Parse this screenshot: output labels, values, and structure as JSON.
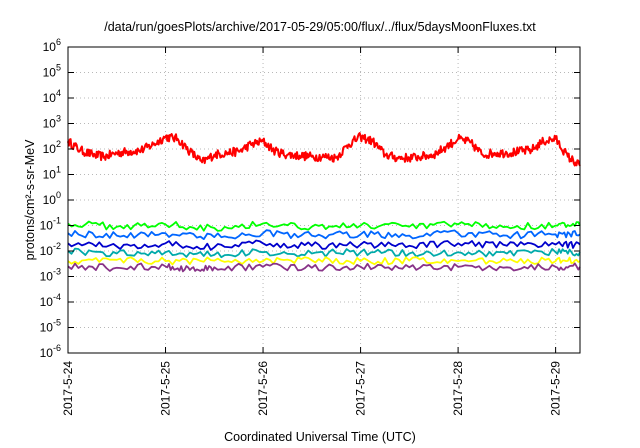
{
  "chart_data": {
    "type": "line",
    "title": "/data/run/goesPlots/archive/2017-05-29/05:00/flux/../flux/5daysMoonFluxes.txt",
    "xlabel": "Coordinated Universal Time (UTC)",
    "ylabel": "protons/cm²-s-sr-MeV",
    "yscale": "log",
    "ylim": [
      1e-06,
      1000000.0
    ],
    "ytick_labels": [
      {
        "exp": -6,
        "base": "10",
        "sup": "-6"
      },
      {
        "exp": -5,
        "base": "10",
        "sup": "-5"
      },
      {
        "exp": -4,
        "base": "10",
        "sup": "-4"
      },
      {
        "exp": -3,
        "base": "10",
        "sup": "-3"
      },
      {
        "exp": -2,
        "base": "10",
        "sup": "-2"
      },
      {
        "exp": -1,
        "base": "10",
        "sup": "-1"
      },
      {
        "exp": 0,
        "base": "10",
        "sup": "0"
      },
      {
        "exp": 1,
        "base": "10",
        "sup": "1"
      },
      {
        "exp": 2,
        "base": "10",
        "sup": "2"
      },
      {
        "exp": 3,
        "base": "10",
        "sup": "3"
      },
      {
        "exp": 4,
        "base": "10",
        "sup": "4"
      },
      {
        "exp": 5,
        "base": "10",
        "sup": "5"
      },
      {
        "exp": 6,
        "base": "10",
        "sup": "6"
      }
    ],
    "xlim": [
      "2017-05-24T00:00",
      "2017-05-29T06:00"
    ],
    "x_ticks": [
      {
        "x": "2017-05-24T00:00",
        "label": "2017-5-24"
      },
      {
        "x": "2017-05-25T00:00",
        "label": "2017-5-25"
      },
      {
        "x": "2017-05-26T00:00",
        "label": "2017-5-26"
      },
      {
        "x": "2017-05-27T00:00",
        "label": "2017-5-27"
      },
      {
        "x": "2017-05-28T00:00",
        "label": "2017-5-28"
      },
      {
        "x": "2017-05-29T00:00",
        "label": "2017-5-29"
      }
    ],
    "grid": true,
    "legend": "none",
    "series": [
      {
        "color": "#ff0000",
        "x": [
          "2017-05-24T00:00",
          "2017-05-24T03:00",
          "2017-05-24T06:00",
          "2017-05-24T09:00",
          "2017-05-24T12:00",
          "2017-05-24T15:00",
          "2017-05-24T18:00",
          "2017-05-24T21:00",
          "2017-05-25T00:00",
          "2017-05-25T03:00",
          "2017-05-25T06:00",
          "2017-05-25T09:00",
          "2017-05-25T12:00",
          "2017-05-25T15:00",
          "2017-05-25T18:00",
          "2017-05-25T21:00",
          "2017-05-26T00:00",
          "2017-05-26T03:00",
          "2017-05-26T06:00",
          "2017-05-26T09:00",
          "2017-05-26T12:00",
          "2017-05-26T15:00",
          "2017-05-26T18:00",
          "2017-05-26T21:00",
          "2017-05-27T00:00",
          "2017-05-27T03:00",
          "2017-05-27T06:00",
          "2017-05-27T09:00",
          "2017-05-27T12:00",
          "2017-05-27T15:00",
          "2017-05-27T18:00",
          "2017-05-27T21:00",
          "2017-05-28T00:00",
          "2017-05-28T03:00",
          "2017-05-28T06:00",
          "2017-05-28T09:00",
          "2017-05-28T12:00",
          "2017-05-28T15:00",
          "2017-05-28T18:00",
          "2017-05-28T21:00",
          "2017-05-29T00:00",
          "2017-05-29T03:00",
          "2017-05-29T06:00"
        ],
        "y": [
          200,
          90,
          60,
          50,
          70,
          80,
          90,
          150,
          300,
          250,
          80,
          30,
          60,
          70,
          80,
          150,
          200,
          80,
          60,
          55,
          50,
          50,
          45,
          150,
          300,
          200,
          60,
          45,
          45,
          50,
          60,
          120,
          250,
          180,
          60,
          70,
          70,
          80,
          90,
          200,
          250,
          50,
          22
        ]
      },
      {
        "color": "#00ff00",
        "x": [
          "2017-05-24T00:00",
          "2017-05-24T12:00",
          "2017-05-25T00:00",
          "2017-05-25T12:00",
          "2017-05-26T00:00",
          "2017-05-26T12:00",
          "2017-05-27T00:00",
          "2017-05-27T12:00",
          "2017-05-28T00:00",
          "2017-05-28T12:00",
          "2017-05-29T00:00",
          "2017-05-29T06:00"
        ],
        "y": [
          0.12,
          0.09,
          0.11,
          0.08,
          0.12,
          0.09,
          0.1,
          0.09,
          0.11,
          0.09,
          0.1,
          0.1
        ]
      },
      {
        "color": "#0066ff",
        "x": [
          "2017-05-24T00:00",
          "2017-05-24T12:00",
          "2017-05-25T00:00",
          "2017-05-25T12:00",
          "2017-05-26T00:00",
          "2017-05-26T12:00",
          "2017-05-27T00:00",
          "2017-05-27T12:00",
          "2017-05-28T00:00",
          "2017-05-28T12:00",
          "2017-05-29T00:00",
          "2017-05-29T06:00"
        ],
        "y": [
          0.05,
          0.04,
          0.05,
          0.035,
          0.05,
          0.04,
          0.045,
          0.04,
          0.05,
          0.04,
          0.045,
          0.045
        ]
      },
      {
        "color": "#0000cc",
        "x": [
          "2017-05-24T00:00",
          "2017-05-24T12:00",
          "2017-05-25T00:00",
          "2017-05-25T12:00",
          "2017-05-26T00:00",
          "2017-05-26T12:00",
          "2017-05-27T00:00",
          "2017-05-27T12:00",
          "2017-05-28T00:00",
          "2017-05-28T12:00",
          "2017-05-29T00:00",
          "2017-05-29T06:00"
        ],
        "y": [
          0.02,
          0.015,
          0.02,
          0.014,
          0.02,
          0.016,
          0.018,
          0.016,
          0.02,
          0.016,
          0.018,
          0.018
        ]
      },
      {
        "color": "#00aaaa",
        "x": [
          "2017-05-24T00:00",
          "2017-05-24T12:00",
          "2017-05-25T00:00",
          "2017-05-25T12:00",
          "2017-05-26T00:00",
          "2017-05-26T12:00",
          "2017-05-27T00:00",
          "2017-05-27T12:00",
          "2017-05-28T00:00",
          "2017-05-28T12:00",
          "2017-05-29T00:00",
          "2017-05-29T06:00"
        ],
        "y": [
          0.01,
          0.008,
          0.009,
          0.007,
          0.009,
          0.008,
          0.009,
          0.008,
          0.009,
          0.008,
          0.009,
          0.009
        ]
      },
      {
        "color": "#ffff00",
        "x": [
          "2017-05-24T00:00",
          "2017-05-24T12:00",
          "2017-05-25T00:00",
          "2017-05-25T12:00",
          "2017-05-26T00:00",
          "2017-05-26T12:00",
          "2017-05-27T00:00",
          "2017-05-27T12:00",
          "2017-05-28T00:00",
          "2017-05-28T12:00",
          "2017-05-29T00:00",
          "2017-05-29T06:00"
        ],
        "y": [
          0.004,
          0.0045,
          0.004,
          0.0042,
          0.004,
          0.0043,
          0.004,
          0.0042,
          0.004,
          0.0042,
          0.004,
          0.004
        ]
      },
      {
        "color": "#883388",
        "x": [
          "2017-05-24T00:00",
          "2017-05-24T12:00",
          "2017-05-25T00:00",
          "2017-05-25T06:00",
          "2017-05-25T12:00",
          "2017-05-26T00:00",
          "2017-05-26T12:00",
          "2017-05-27T00:00",
          "2017-05-27T12:00",
          "2017-05-28T00:00",
          "2017-05-28T12:00",
          "2017-05-29T00:00",
          "2017-05-29T06:00"
        ],
        "y": [
          0.0025,
          0.0022,
          0.0025,
          0.0018,
          0.0023,
          0.0024,
          0.0022,
          0.0024,
          0.0023,
          0.0024,
          0.0023,
          0.0024,
          0.0024
        ]
      }
    ]
  }
}
